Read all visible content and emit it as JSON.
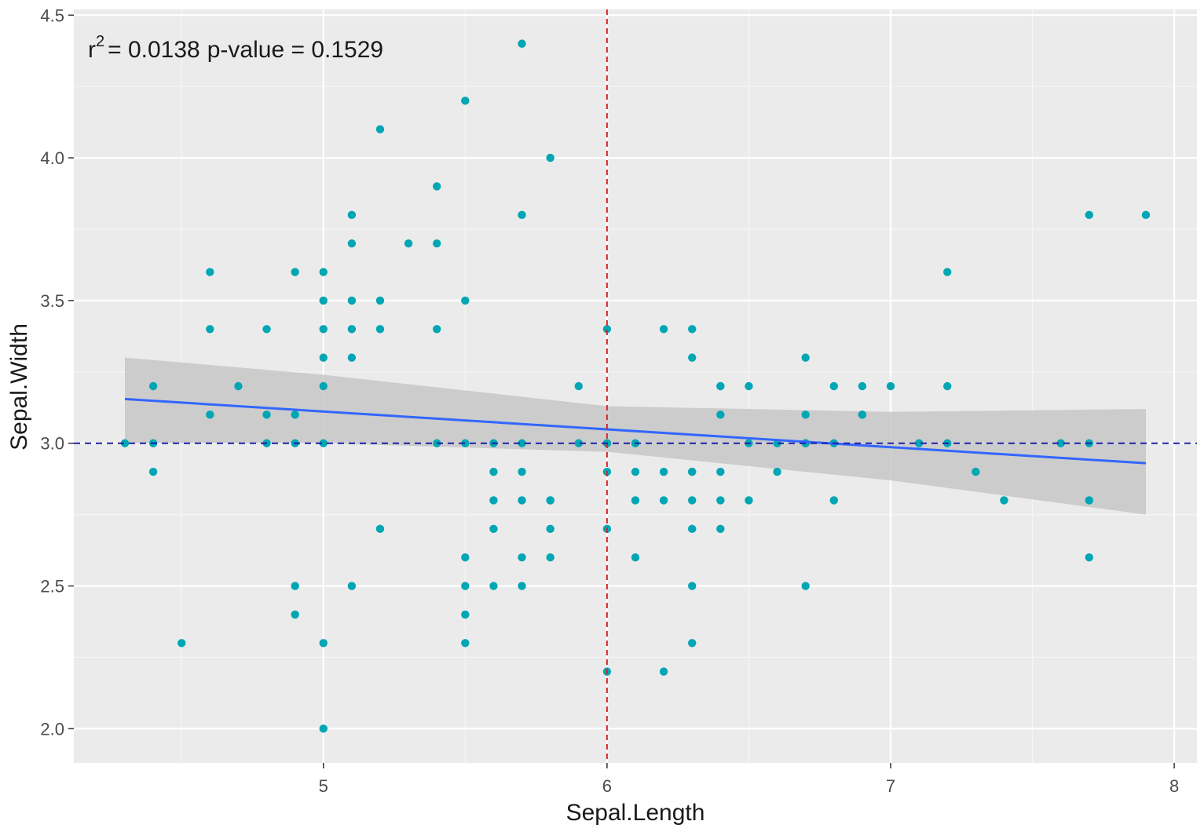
{
  "chart_data": {
    "type": "scatter",
    "title": "",
    "xlabel": "Sepal.Length",
    "ylabel": "Sepal.Width",
    "xlim": [
      4.12,
      8.08
    ],
    "ylim": [
      1.88,
      4.52
    ],
    "x_ticks": [
      5,
      6,
      7,
      8
    ],
    "x_tick_labels": [
      "5",
      "6",
      "7",
      "8"
    ],
    "y_ticks": [
      2.0,
      2.5,
      3.0,
      3.5,
      4.0,
      4.5
    ],
    "y_tick_labels": [
      "2.0",
      "2.5",
      "3.0",
      "3.5",
      "4.0",
      "4.5"
    ],
    "grid": true,
    "annotation": {
      "r_symbol": "r",
      "r_exponent": "2",
      "r_value_text": "= 0.0138",
      "p_text": "p-value = 0.1529"
    },
    "reference_lines": {
      "vertical_x": 6.0,
      "horizontal_y": 3.0
    },
    "regression": {
      "x": [
        4.3,
        7.9
      ],
      "y": [
        3.155,
        2.93
      ],
      "ci_x": [
        4.3,
        5.0,
        6.0,
        7.0,
        7.9
      ],
      "ci_upper": [
        3.3,
        3.24,
        3.13,
        3.11,
        3.12
      ],
      "ci_lower": [
        3.0,
        3.0,
        2.97,
        2.87,
        2.75
      ]
    },
    "points": {
      "x": [
        4.3,
        4.4,
        4.4,
        4.4,
        4.5,
        4.6,
        4.6,
        4.6,
        4.7,
        4.8,
        4.8,
        4.8,
        4.9,
        4.9,
        4.9,
        4.9,
        4.9,
        5.0,
        5.0,
        5.0,
        5.0,
        5.0,
        5.0,
        5.0,
        5.0,
        5.1,
        5.1,
        5.1,
        5.1,
        5.1,
        5.1,
        5.2,
        5.2,
        5.2,
        5.2,
        5.3,
        5.4,
        5.4,
        5.4,
        5.4,
        5.5,
        5.5,
        5.5,
        5.5,
        5.5,
        5.5,
        5.5,
        5.6,
        5.6,
        5.6,
        5.6,
        5.6,
        5.7,
        5.7,
        5.7,
        5.7,
        5.7,
        5.7,
        5.7,
        5.8,
        5.8,
        5.8,
        5.8,
        5.8,
        5.9,
        5.9,
        6.0,
        6.0,
        6.0,
        6.0,
        6.0,
        6.0,
        6.1,
        6.1,
        6.1,
        6.1,
        6.2,
        6.2,
        6.2,
        6.2,
        6.3,
        6.3,
        6.3,
        6.3,
        6.3,
        6.3,
        6.3,
        6.3,
        6.4,
        6.4,
        6.4,
        6.4,
        6.4,
        6.4,
        6.5,
        6.5,
        6.5,
        6.6,
        6.6,
        6.7,
        6.7,
        6.7,
        6.7,
        6.7,
        6.8,
        6.8,
        6.8,
        6.9,
        6.9,
        6.9,
        7.0,
        7.1,
        7.2,
        7.2,
        7.2,
        7.3,
        7.4,
        7.6,
        7.7,
        7.7,
        7.7,
        7.7,
        7.9
      ],
      "y": [
        3.0,
        3.2,
        3.0,
        2.9,
        2.3,
        3.6,
        3.4,
        3.1,
        3.2,
        3.4,
        3.1,
        3.0,
        3.6,
        3.1,
        3.0,
        2.5,
        2.4,
        3.6,
        3.5,
        3.4,
        3.3,
        3.2,
        3.0,
        2.3,
        2.0,
        3.8,
        3.7,
        3.5,
        3.4,
        3.3,
        2.5,
        4.1,
        3.5,
        3.4,
        2.7,
        3.7,
        3.9,
        3.7,
        3.4,
        3.0,
        4.2,
        3.5,
        2.6,
        2.5,
        2.4,
        2.3,
        3.0,
        3.0,
        2.9,
        2.8,
        2.7,
        2.5,
        4.4,
        3.8,
        3.0,
        2.9,
        2.8,
        2.6,
        2.5,
        4.0,
        2.8,
        2.7,
        2.6,
        2.8,
        3.2,
        3.0,
        3.4,
        3.0,
        2.9,
        2.7,
        2.2,
        3.0,
        3.0,
        2.9,
        2.8,
        2.6,
        3.4,
        2.9,
        2.8,
        2.2,
        3.4,
        3.3,
        2.9,
        2.8,
        2.7,
        2.5,
        2.3,
        2.9,
        3.2,
        3.1,
        2.9,
        2.8,
        2.7,
        3.2,
        3.2,
        3.0,
        2.8,
        3.0,
        2.9,
        3.3,
        3.1,
        3.0,
        2.5,
        3.0,
        3.2,
        3.0,
        2.8,
        3.2,
        3.1,
        3.1,
        3.2,
        3.0,
        3.6,
        3.2,
        3.0,
        2.9,
        2.8,
        3.0,
        3.8,
        3.0,
        2.8,
        2.6,
        3.8
      ]
    },
    "colors": {
      "panel_background": "#ebebeb",
      "grid_major": "#ffffff",
      "grid_minor": "#f5f5f5",
      "points": "#00a6b4",
      "regression_line": "#3366ff",
      "confidence_band": "#c4c4c4",
      "vertical_reference": "#d62728",
      "horizontal_reference": "#1f1fa8"
    }
  }
}
